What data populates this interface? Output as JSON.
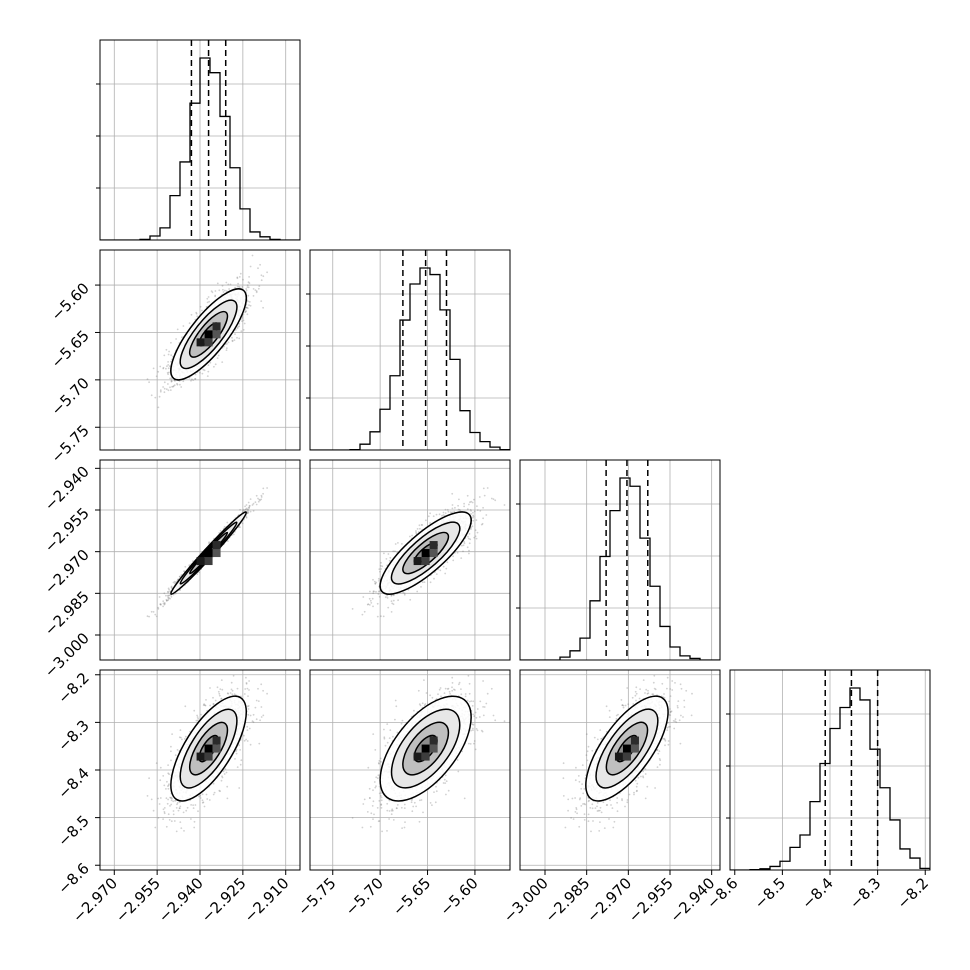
{
  "chart_data": {
    "type": "corner",
    "parameters": [
      {
        "id": "p0",
        "label": "",
        "mean": -2.937,
        "std": 0.0066,
        "quantiles": [
          -2.943,
          -2.937,
          -2.931
        ],
        "range": [
          -2.975,
          -2.905
        ],
        "ticks": [
          -2.97,
          -2.955,
          -2.94,
          -2.925,
          -2.91
        ],
        "tick_labels": [
          "−2.970",
          "−2.955",
          "−2.940",
          "−2.925",
          "−2.910"
        ]
      },
      {
        "id": "p1",
        "label": "",
        "mean": -5.652,
        "std": 0.024,
        "quantiles": [
          -5.676,
          -5.652,
          -5.63
        ],
        "range": [
          -5.774,
          -5.563
        ],
        "ticks": [
          -5.75,
          -5.7,
          -5.65,
          -5.6
        ],
        "tick_labels": [
          "−5.75",
          "−5.70",
          "−5.65",
          "−5.60"
        ]
      },
      {
        "id": "p2",
        "label": "",
        "mean": -2.9705,
        "std": 0.0074,
        "quantiles": [
          -2.978,
          -2.9705,
          -2.963
        ],
        "range": [
          -3.009,
          -2.937
        ],
        "ticks": [
          -3.0,
          -2.985,
          -2.97,
          -2.955,
          -2.94
        ],
        "tick_labels": [
          "−3.000",
          "−2.985",
          "−2.970",
          "−2.955",
          "−2.940"
        ]
      },
      {
        "id": "p3",
        "label": "",
        "mean": -8.355,
        "std": 0.055,
        "quantiles": [
          -8.41,
          -8.355,
          -8.3
        ],
        "range": [
          -8.61,
          -8.19
        ],
        "ticks": [
          -8.6,
          -8.5,
          -8.4,
          -8.3,
          -8.2
        ],
        "tick_labels": [
          "−8.6",
          "−8.5",
          "−8.4",
          "−8.3",
          "−8.2"
        ]
      }
    ],
    "correlations": [
      {
        "pair": [
          "p0",
          "p1"
        ],
        "rho": 0.8
      },
      {
        "pair": [
          "p0",
          "p2"
        ],
        "rho": 0.985
      },
      {
        "pair": [
          "p0",
          "p3"
        ],
        "rho": 0.7
      },
      {
        "pair": [
          "p1",
          "p2"
        ],
        "rho": 0.8
      },
      {
        "pair": [
          "p1",
          "p3"
        ],
        "rho": 0.6
      },
      {
        "pair": [
          "p2",
          "p3"
        ],
        "rho": 0.7
      }
    ],
    "histogram_bins": 20,
    "samples_shown": 3000,
    "contour_levels_sigma": [
      0.5,
      1.0,
      1.5,
      2.0
    ],
    "quantile_line_style": "dashed",
    "grid": true
  }
}
